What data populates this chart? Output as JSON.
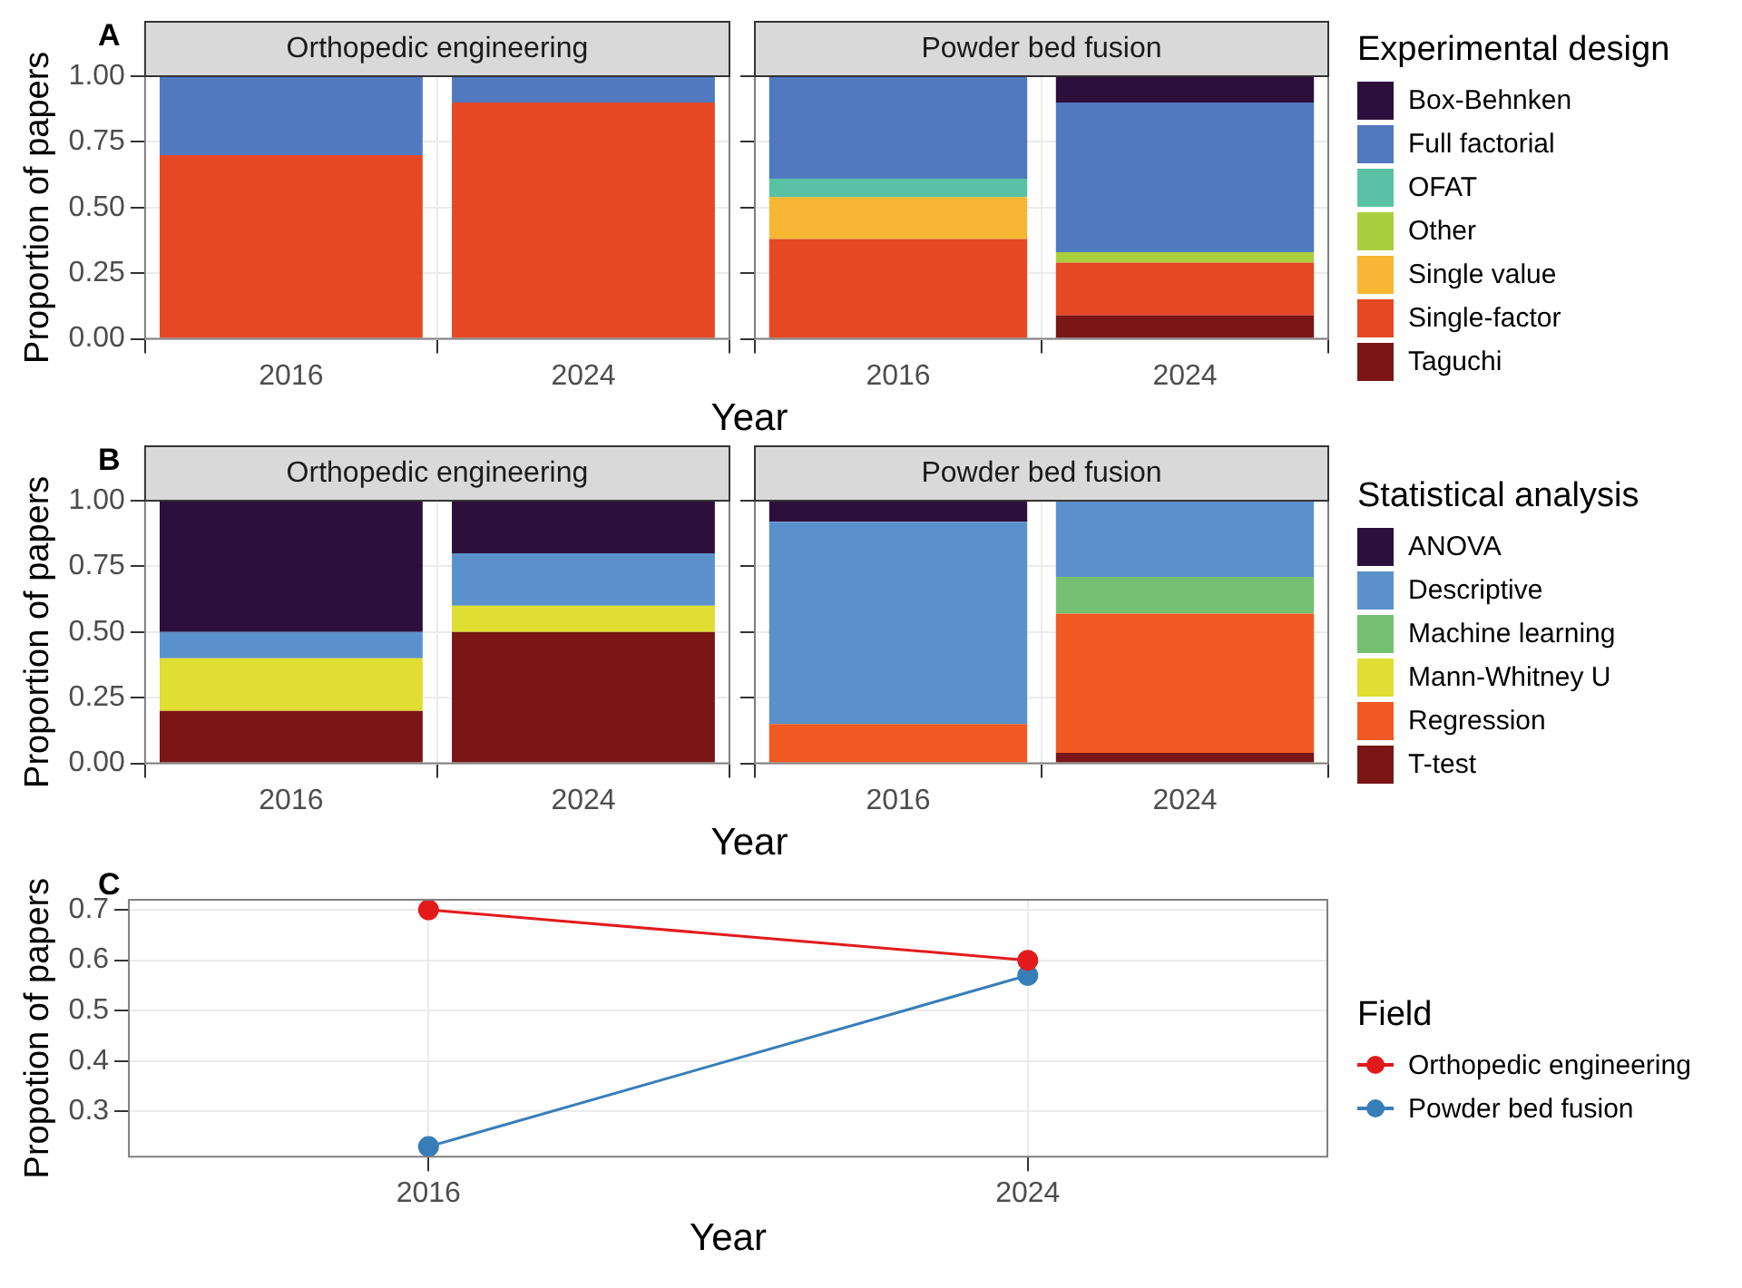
{
  "chart_data": [
    {
      "type": "bar",
      "title": "Orthopedic engineering",
      "annotations": [
        "A"
      ],
      "xlabel": "Year",
      "ylabel": "Proportion of papers",
      "categories": [
        "2016",
        "2024"
      ],
      "stacked": true,
      "grid": true,
      "ylim": [
        0,
        1
      ],
      "yticks": [
        {
          "value": 0,
          "label": "0.00"
        },
        {
          "value": 0.25,
          "label": "0.25"
        },
        {
          "value": 0.5,
          "label": "0.50"
        },
        {
          "value": 0.75,
          "label": "0.75"
        },
        {
          "value": 1,
          "label": "1.00"
        }
      ],
      "series": [
        {
          "color": "#e54823",
          "values": [
            0.7,
            0.9
          ]
        },
        {
          "color": "#5079c0",
          "values": [
            0.3,
            0.1
          ]
        }
      ]
    },
    {
      "type": "bar",
      "title": "Powder bed fusion",
      "categories": [
        "2016",
        "2024"
      ],
      "stacked": true,
      "grid": true,
      "tick_labels": "x",
      "legend": "right",
      "legend_title": "Experimental design",
      "ylim": [
        0,
        1
      ],
      "yticks": [
        0,
        0.25,
        0.5,
        0.75,
        1
      ],
      "series": [
        {
          "name": "Taguchi",
          "color": "#7a1616",
          "values": [
            null,
            0.09
          ]
        },
        {
          "name": "Single-factor",
          "color": "#e54823",
          "values": [
            0.38,
            0.2
          ]
        },
        {
          "name": "Single value",
          "color": "#f8b733",
          "values": [
            0.16,
            null
          ]
        },
        {
          "name": "Other",
          "color": "#a9cf3c",
          "values": [
            null,
            0.04
          ]
        },
        {
          "name": "OFAT",
          "color": "#5ac2a4",
          "values": [
            0.07,
            null
          ]
        },
        {
          "name": "Full factorial",
          "color": "#5079c0",
          "values": [
            0.39,
            0.57
          ]
        },
        {
          "name": "Box-Behnken",
          "color": "#2d0f3b",
          "values": [
            null,
            0.1
          ]
        }
      ]
    },
    {
      "type": "bar",
      "title": "Orthopedic engineering",
      "annotations": [
        "B"
      ],
      "xlabel": "Year",
      "ylabel": "Proportion of papers",
      "categories": [
        "2016",
        "2024"
      ],
      "stacked": true,
      "grid": true,
      "ylim": [
        0,
        1
      ],
      "yticks": [
        {
          "value": 0,
          "label": "0.00"
        },
        {
          "value": 0.25,
          "label": "0.25"
        },
        {
          "value": 0.5,
          "label": "0.50"
        },
        {
          "value": 0.75,
          "label": "0.75"
        },
        {
          "value": 1,
          "label": "1.00"
        }
      ],
      "series": [
        {
          "color": "#7a1616",
          "values": [
            0.2,
            0.5
          ]
        },
        {
          "color": "#e0dd33",
          "values": [
            0.2,
            0.1
          ]
        },
        {
          "color": "#5a91cc",
          "values": [
            0.1,
            0.2
          ]
        },
        {
          "color": "#2d0f3b",
          "values": [
            0.5,
            0.2
          ]
        }
      ]
    },
    {
      "type": "bar",
      "title": "Powder bed fusion",
      "categories": [
        "2016",
        "2024"
      ],
      "stacked": true,
      "grid": true,
      "tick_labels": "x",
      "legend": "right",
      "legend_title": "Statistical analysis",
      "ylim": [
        0,
        1
      ],
      "yticks": [
        0,
        0.25,
        0.5,
        0.75,
        1
      ],
      "series": [
        {
          "name": "T-test",
          "color": "#7a1616",
          "values": [
            null,
            0.04
          ]
        },
        {
          "name": "Regression",
          "color": "#f05a22",
          "values": [
            0.15,
            0.53
          ]
        },
        {
          "name": "Mann-Whitney U",
          "color": "#e0dd33",
          "values": [
            null,
            null
          ]
        },
        {
          "name": "Machine learning",
          "color": "#74c173",
          "values": [
            null,
            0.14
          ]
        },
        {
          "name": "Descriptive",
          "color": "#5a91cc",
          "values": [
            0.77,
            0.29
          ]
        },
        {
          "name": "ANOVA",
          "color": "#2d0f3b",
          "values": [
            0.08,
            null
          ]
        }
      ]
    },
    {
      "type": "line",
      "annotations": [
        "C"
      ],
      "xlabel": "Year",
      "ylabel": "Propotion of papers",
      "categories": [
        "2016",
        "2024"
      ],
      "grid": true,
      "legend": "right",
      "legend_title": "Field",
      "marker": "circle",
      "line_style": "solid",
      "ylim": [
        0.21,
        0.72
      ],
      "yticks": [
        0.3,
        0.4,
        0.5,
        0.6,
        0.7
      ],
      "series": [
        {
          "name": "Orthopedic engineering",
          "color": "#e31a1c",
          "values": [
            0.7,
            0.6
          ]
        },
        {
          "name": "Powder bed fusion",
          "color": "#377eb8",
          "values": [
            0.23,
            0.57
          ]
        }
      ]
    }
  ]
}
